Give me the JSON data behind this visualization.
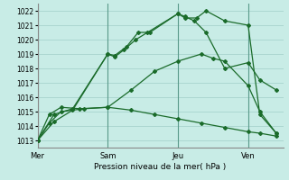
{
  "xlabel": "Pression niveau de la mer( hPa )",
  "bg_color": "#c8ece6",
  "grid_color": "#a0cfc8",
  "line_color": "#1a6b2a",
  "vline_color": "#5a9a8a",
  "ylim": [
    1012.5,
    1022.5
  ],
  "yticks": [
    1013,
    1014,
    1015,
    1016,
    1017,
    1018,
    1019,
    1020,
    1021,
    1022
  ],
  "xtick_labels": [
    "Mer",
    "Sam",
    "Jeu",
    "Ven"
  ],
  "xtick_positions": [
    0,
    3,
    6,
    9
  ],
  "xlim": [
    0,
    10.5
  ],
  "series": [
    {
      "x": [
        0,
        0.7,
        1.5,
        3.0,
        3.3,
        3.7,
        4.2,
        4.7,
        6.0,
        6.3,
        6.7,
        7.2,
        8.0,
        9.0,
        9.5,
        10.2
      ],
      "y": [
        1013.0,
        1014.8,
        1015.2,
        1019.0,
        1018.8,
        1019.3,
        1020.0,
        1020.5,
        1021.8,
        1021.6,
        1021.3,
        1020.5,
        1018.0,
        1018.4,
        1017.2,
        1016.5
      ]
    },
    {
      "x": [
        0,
        0.7,
        1.5,
        3.0,
        3.3,
        3.8,
        4.3,
        4.8,
        6.0,
        6.3,
        6.8,
        7.2,
        8.0,
        9.0,
        9.5,
        10.2
      ],
      "y": [
        1013.0,
        1014.3,
        1015.1,
        1019.0,
        1018.9,
        1019.5,
        1020.5,
        1020.5,
        1021.8,
        1021.5,
        1021.5,
        1022.0,
        1021.3,
        1021.0,
        1014.8,
        1013.5
      ]
    },
    {
      "x": [
        0,
        0.5,
        1.0,
        1.8,
        3.0,
        4.0,
        5.0,
        6.0,
        7.0,
        7.5,
        8.0,
        9.0,
        9.5,
        10.2
      ],
      "y": [
        1013.0,
        1014.8,
        1015.3,
        1015.2,
        1015.3,
        1016.5,
        1017.8,
        1018.5,
        1019.0,
        1018.7,
        1018.5,
        1016.8,
        1015.0,
        1013.5
      ]
    },
    {
      "x": [
        0,
        0.5,
        1.0,
        2.0,
        3.0,
        4.0,
        5.0,
        6.0,
        7.0,
        8.0,
        9.0,
        9.5,
        10.2
      ],
      "y": [
        1013.0,
        1014.2,
        1015.0,
        1015.2,
        1015.3,
        1015.1,
        1014.8,
        1014.5,
        1014.2,
        1013.9,
        1013.6,
        1013.5,
        1013.3
      ]
    }
  ]
}
